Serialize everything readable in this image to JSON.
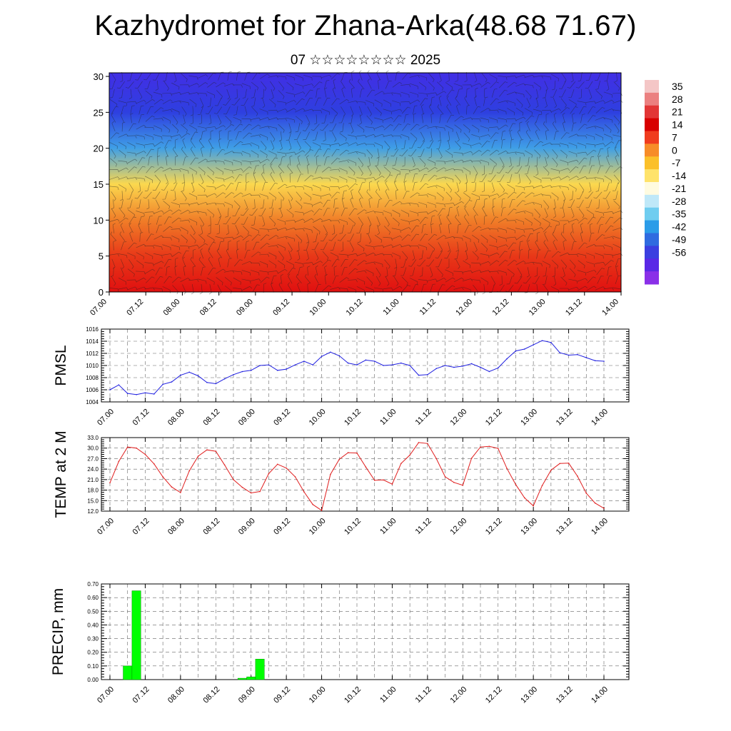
{
  "title": "Kazhydromet for Zhana-Arka(48.68 71.67)",
  "subtitle": "07 ☆☆☆☆☆☆☆☆ 2025",
  "colors": {
    "pmsl_line": "#1f1fe0",
    "temp_line": "#e01f1f",
    "precip_bar": "#00ff00",
    "grid": "#666666"
  },
  "chart_data": [
    {
      "type": "heatmap",
      "name": "cross-section",
      "x_tick_labels": [
        "07.00",
        "07.12",
        "08.00",
        "08.12",
        "09.00",
        "09.12",
        "10.00",
        "10.12",
        "11.00",
        "11.12",
        "12.00",
        "12.12",
        "13.00",
        "13.12",
        "14.00"
      ],
      "y_tick_labels": [
        "0",
        "5",
        "10",
        "15",
        "20",
        "25",
        "30"
      ],
      "ylim": [
        0,
        30.5
      ],
      "colorbar_labels": [
        "35",
        "28",
        "21",
        "14",
        "7",
        "0",
        "-7",
        "-14",
        "-21",
        "-28",
        "-35",
        "-42",
        "-49",
        "-56"
      ],
      "colorbar_colors": [
        "#f4c6c6",
        "#eb8080",
        "#e23636",
        "#d80000",
        "#f03c1e",
        "#f78c28",
        "#fbc02a",
        "#ffe36a",
        "#fffbe0",
        "#bfe8f8",
        "#6fcdf0",
        "#2b9ce8",
        "#2f6be0",
        "#3b3fe0",
        "#5a28e6",
        "#8a30e8"
      ],
      "profile_heights": [
        0,
        5,
        10,
        15,
        20,
        25,
        30
      ],
      "profile_colors": [
        "#e01010",
        "#e83818",
        "#f07e28",
        "#fbd84e",
        "#3f9fe6",
        "#2e3fe0",
        "#4030e4"
      ],
      "grid": true
    },
    {
      "type": "line",
      "name": "PMSL",
      "ylabel": "PMSL",
      "ylim": [
        1004,
        1016
      ],
      "y_tick_labels": [
        "1004",
        "1006",
        "1008",
        "1010",
        "1012",
        "1014",
        "1016"
      ],
      "x_tick_labels": [
        "07.00",
        "07.12",
        "08.00",
        "08.12",
        "09.00",
        "09.12",
        "10.00",
        "10.12",
        "11.00",
        "11.12",
        "12.00",
        "12.12",
        "13.00",
        "13.12",
        "14.00"
      ],
      "x": [
        0.0,
        0.25,
        0.5,
        0.75,
        1.0,
        1.25,
        1.5,
        1.75,
        2.0,
        2.25,
        2.5,
        2.75,
        3.0,
        3.25,
        3.5,
        3.75,
        4.0,
        4.25,
        4.5,
        4.75,
        5.0,
        5.25,
        5.5,
        5.75,
        6.0,
        6.25,
        6.5,
        6.75,
        7.0,
        7.25,
        7.5,
        7.75,
        8.0,
        8.25,
        8.5,
        8.75,
        9.0,
        9.25,
        9.5,
        9.75,
        10.0,
        10.25,
        10.5,
        10.75,
        11.0,
        11.25,
        11.5,
        11.75,
        12.0,
        12.25,
        12.5,
        12.75,
        13.0,
        13.25,
        13.5,
        13.75,
        14.0
      ],
      "values": [
        1006.0,
        1006.8,
        1005.4,
        1005.2,
        1005.5,
        1005.3,
        1006.9,
        1007.3,
        1008.4,
        1008.9,
        1008.3,
        1007.2,
        1007.0,
        1007.8,
        1008.5,
        1009.0,
        1009.2,
        1010.0,
        1010.1,
        1009.2,
        1009.4,
        1010.1,
        1010.7,
        1010.1,
        1011.5,
        1012.2,
        1011.6,
        1010.4,
        1010.1,
        1010.9,
        1010.7,
        1010.0,
        1010.1,
        1010.4,
        1010.0,
        1008.4,
        1008.5,
        1009.5,
        1010.0,
        1009.7,
        1009.9,
        1010.3,
        1009.7,
        1009.0,
        1009.6,
        1011.1,
        1012.4,
        1012.7,
        1013.4,
        1014.1,
        1013.8,
        1012.1,
        1011.7,
        1011.8,
        1011.3,
        1010.8,
        1010.7
      ],
      "series": [
        {
          "name": "PMSL"
        }
      ]
    },
    {
      "type": "line",
      "name": "TEMP at 2 M",
      "ylabel": "TEMP at 2 M",
      "ylim": [
        12.0,
        33.0
      ],
      "y_tick_labels": [
        "12.0",
        "15.0",
        "18.0",
        "21.0",
        "24.0",
        "27.0",
        "30.0",
        "33.0"
      ],
      "x_tick_labels": [
        "07.00",
        "07.12",
        "08.00",
        "08.12",
        "09.00",
        "09.12",
        "10.00",
        "10.12",
        "11.00",
        "11.12",
        "12.00",
        "12.12",
        "13.00",
        "13.12",
        "14.00"
      ],
      "x": [
        0.0,
        0.25,
        0.5,
        0.75,
        1.0,
        1.25,
        1.5,
        1.75,
        2.0,
        2.25,
        2.5,
        2.75,
        3.0,
        3.25,
        3.5,
        3.75,
        4.0,
        4.25,
        4.5,
        4.75,
        5.0,
        5.25,
        5.5,
        5.75,
        6.0,
        6.25,
        6.5,
        6.75,
        7.0,
        7.25,
        7.5,
        7.75,
        8.0,
        8.25,
        8.5,
        8.75,
        9.0,
        9.25,
        9.5,
        9.75,
        10.0,
        10.25,
        10.5,
        10.75,
        11.0,
        11.25,
        11.5,
        11.75,
        12.0,
        12.25,
        12.5,
        12.75,
        13.0,
        13.25,
        13.5,
        13.75,
        14.0
      ],
      "values": [
        20.1,
        26.2,
        30.3,
        30.0,
        28.2,
        25.5,
        21.8,
        18.9,
        17.3,
        23.5,
        27.7,
        29.5,
        29.1,
        25.2,
        21.0,
        18.8,
        17.2,
        17.6,
        22.7,
        25.4,
        24.3,
        21.8,
        17.5,
        13.9,
        12.2,
        22.5,
        26.8,
        28.7,
        28.6,
        24.6,
        20.8,
        20.9,
        19.7,
        25.6,
        28.0,
        31.6,
        31.3,
        27.0,
        21.8,
        20.2,
        19.4,
        27.1,
        30.3,
        30.5,
        29.9,
        24.2,
        19.6,
        15.8,
        13.5,
        19.3,
        23.7,
        25.6,
        25.7,
        22.0,
        17.1,
        14.3,
        12.8
      ],
      "series": [
        {
          "name": "TEMP at 2 M"
        }
      ]
    },
    {
      "type": "bar",
      "name": "PRECIP, mm",
      "ylabel": "PRECIP, mm",
      "ylim": [
        0,
        0.7
      ],
      "y_tick_labels": [
        "0.00",
        "0.10",
        "0.20",
        "0.30",
        "0.40",
        "0.50",
        "0.60",
        "0.70"
      ],
      "x_tick_labels": [
        "07.00",
        "07.12",
        "08.00",
        "08.12",
        "09.00",
        "09.12",
        "10.00",
        "10.12",
        "11.00",
        "11.12",
        "12.00",
        "12.12",
        "13.00",
        "13.12",
        "14.00"
      ],
      "x": [
        0.5,
        0.75,
        3.75,
        4.0,
        4.25
      ],
      "values": [
        0.1,
        0.65,
        0.01,
        0.02,
        0.15
      ],
      "series": [
        {
          "name": "PRECIP, mm"
        }
      ]
    }
  ]
}
